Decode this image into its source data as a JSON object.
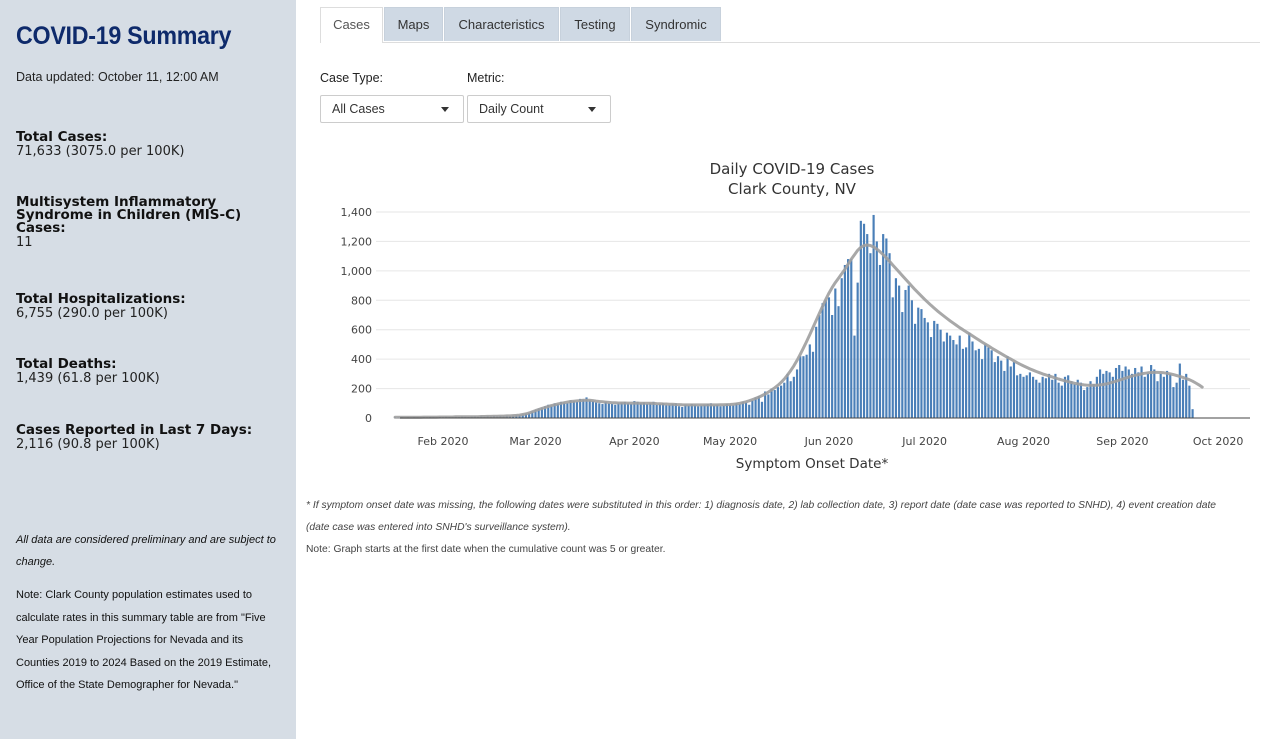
{
  "sidebar": {
    "title": "COVID-19 Summary",
    "updated": "Data updated: October 11, 12:00 AM",
    "stats": [
      {
        "label": "Total Cases:",
        "value": "71,633 (3075.0 per 100K)"
      },
      {
        "label": "Multisystem Inflammatory Syndrome in Children (MIS-C) Cases:",
        "value": "11"
      },
      {
        "label": "Total Hospitalizations:",
        "value": "6,755 (290.0 per 100K)"
      },
      {
        "label": "Total Deaths:",
        "value": "1,439 (61.8 per 100K)"
      },
      {
        "label": "Cases Reported in Last 7 Days:",
        "value": "2,116 (90.8 per 100K)"
      }
    ],
    "note_preliminary": "All data are considered preliminary and are subject to change.",
    "note_population": "Note: Clark County population estimates used to calculate rates in this summary table are from \"Five Year Population Projections for Nevada and its Counties 2019 to 2024 Based on the 2019 Estimate, Office of the State Demographer for Nevada.\""
  },
  "tabs": [
    "Cases",
    "Maps",
    "Characteristics",
    "Testing",
    "Syndromic"
  ],
  "active_tab": "Cases",
  "controls": {
    "case_type_label": "Case Type:",
    "case_type_value": "All Cases",
    "metric_label": "Metric:",
    "metric_value": "Daily Count"
  },
  "colors": {
    "bar": "#4a7fb8",
    "trend": "#9e9e9e",
    "title": "#0e2a6b",
    "sidebar_bg": "#d6dde5"
  },
  "chart_data": {
    "type": "bar",
    "title": "Daily COVID-19 Cases",
    "subtitle": "Clark County, NV",
    "xlabel": "Symptom Onset Date*",
    "ylabel": "",
    "ylim": [
      0,
      1400
    ],
    "yticks": [
      0,
      200,
      400,
      600,
      800,
      1000,
      1200,
      1400
    ],
    "ytick_labels": [
      "0",
      "200",
      "400",
      "600",
      "800",
      "1,000",
      "1,200",
      "1,400"
    ],
    "x_start": "2020-01-11",
    "x_end": "2020-10-11",
    "xticks": [
      {
        "date": "2020-02-01",
        "label": "Feb 2020"
      },
      {
        "date": "2020-03-01",
        "label": "Mar 2020"
      },
      {
        "date": "2020-04-01",
        "label": "Apr 2020"
      },
      {
        "date": "2020-05-01",
        "label": "May 2020"
      },
      {
        "date": "2020-06-01",
        "label": "Jun 2020"
      },
      {
        "date": "2020-07-01",
        "label": "Jul 2020"
      },
      {
        "date": "2020-08-01",
        "label": "Aug 2020"
      },
      {
        "date": "2020-09-01",
        "label": "Sep 2020"
      },
      {
        "date": "2020-10-01",
        "label": "Oct 2020"
      }
    ],
    "grid": true,
    "legend": "none",
    "series": [
      {
        "type": "bar",
        "values_start": "2020-01-17",
        "values": [
          5,
          4,
          6,
          3,
          5,
          4,
          6,
          5,
          4,
          6,
          5,
          7,
          6,
          5,
          7,
          6,
          8,
          7,
          6,
          8,
          7,
          9,
          8,
          7,
          9,
          10,
          8,
          11,
          9,
          12,
          10,
          13,
          11,
          14,
          12,
          15,
          13,
          16,
          18,
          20,
          25,
          30,
          35,
          45,
          55,
          65,
          70,
          80,
          90,
          85,
          100,
          95,
          110,
          105,
          100,
          120,
          115,
          110,
          130,
          125,
          140,
          120,
          115,
          105,
          100,
          95,
          110,
          100,
          95,
          90,
          100,
          105,
          110,
          100,
          95,
          115,
          110,
          100,
          105,
          95,
          100,
          110,
          90,
          95,
          100,
          85,
          90,
          95,
          100,
          80,
          75,
          90,
          85,
          95,
          90,
          80,
          85,
          90,
          95,
          100,
          85,
          90,
          80,
          85,
          95,
          90,
          85,
          100,
          95,
          110,
          105,
          90,
          120,
          140,
          150,
          110,
          180,
          160,
          200,
          190,
          210,
          220,
          240,
          300,
          250,
          280,
          330,
          420,
          420,
          430,
          500,
          450,
          620,
          700,
          780,
          800,
          820,
          700,
          880,
          760,
          950,
          1040,
          1080,
          1080,
          560,
          920,
          1340,
          1320,
          1250,
          1120,
          1380,
          1200,
          1040,
          1250,
          1220,
          1120,
          820,
          950,
          900,
          720,
          870,
          900,
          800,
          640,
          750,
          740,
          680,
          650,
          550,
          660,
          640,
          600,
          520,
          580,
          560,
          530,
          500,
          560,
          470,
          480,
          580,
          520,
          460,
          470,
          400,
          500,
          480,
          460,
          380,
          420,
          390,
          320,
          420,
          350,
          380,
          290,
          300,
          280,
          290,
          310,
          280,
          260,
          240,
          280,
          270,
          300,
          260,
          300,
          240,
          220,
          280,
          290,
          250,
          230,
          260,
          240,
          190,
          210,
          250,
          230,
          280,
          330,
          300,
          320,
          310,
          280,
          340,
          360,
          320,
          350,
          330,
          300,
          340,
          310,
          350,
          280,
          300,
          360,
          330,
          250,
          300,
          280,
          320,
          300,
          210,
          240,
          370,
          260,
          300,
          220,
          60
        ]
      },
      {
        "type": "line",
        "name": "",
        "values_start": "2020-01-17",
        "values": [
          5,
          5,
          5,
          5,
          5,
          5,
          5,
          5,
          5,
          6,
          6,
          6,
          6,
          6,
          7,
          7,
          7,
          7,
          7,
          8,
          8,
          8,
          8,
          8,
          9,
          9,
          9,
          10,
          10,
          11,
          11,
          12,
          12,
          13,
          13,
          14,
          14,
          16,
          18,
          20,
          24,
          28,
          34,
          42,
          50,
          58,
          65,
          72,
          78,
          84,
          90,
          95,
          100,
          104,
          108,
          112,
          114,
          116,
          118,
          120,
          121,
          120,
          118,
          115,
          112,
          110,
          108,
          106,
          104,
          103,
          102,
          102,
          102,
          101,
          101,
          101,
          101,
          100,
          100,
          100,
          100,
          99,
          98,
          97,
          96,
          95,
          94,
          93,
          92,
          91,
          90,
          89,
          89,
          89,
          89,
          89,
          89,
          89,
          89,
          89,
          89,
          89,
          90,
          90,
          91,
          92,
          94,
          96,
          100,
          105,
          110,
          117,
          125,
          133,
          142,
          152,
          163,
          176,
          190,
          205,
          222,
          242,
          265,
          292,
          322,
          355,
          392,
          432,
          475,
          520,
          567,
          615,
          664,
          712,
          760,
          806,
          848,
          886,
          920,
          950,
          980,
          1010,
          1045,
          1080,
          1110,
          1140,
          1160,
          1172,
          1176,
          1172,
          1162,
          1148,
          1130,
          1110,
          1088,
          1064,
          1040,
          1016,
          992,
          968,
          944,
          920,
          896,
          872,
          850,
          828,
          807,
          786,
          766,
          747,
          728,
          710,
          693,
          676,
          660,
          644,
          629,
          614,
          600,
          586,
          572,
          558,
          544,
          530,
          516,
          503,
          490,
          476,
          463,
          450,
          437,
          424,
          412,
          400,
          388,
          376,
          365,
          354,
          344,
          334,
          325,
          316,
          308,
          300,
          293,
          286,
          279,
          272,
          265,
          259,
          253,
          247,
          241,
          236,
          232,
          228,
          225,
          223,
          222,
          222,
          223,
          225,
          228,
          232,
          237,
          243,
          250,
          257,
          264,
          271,
          278,
          285,
          290,
          295,
          300,
          304,
          307,
          309,
          310,
          310,
          309,
          307,
          304,
          300,
          295,
          289,
          283,
          276,
          268,
          260,
          250,
          238,
          225,
          210
        ]
      }
    ]
  },
  "footnotes": {
    "symptom_onset": "* If symptom onset date was missing, the following dates were substituted in this order: 1) diagnosis date, 2) lab collection date, 3) report date (date case was reported to SNHD), 4) event creation date (date case was entered into SNHD's surveillance system).",
    "graph_start": "Note: Graph starts at the first date when the cumulative count was 5 or greater."
  }
}
